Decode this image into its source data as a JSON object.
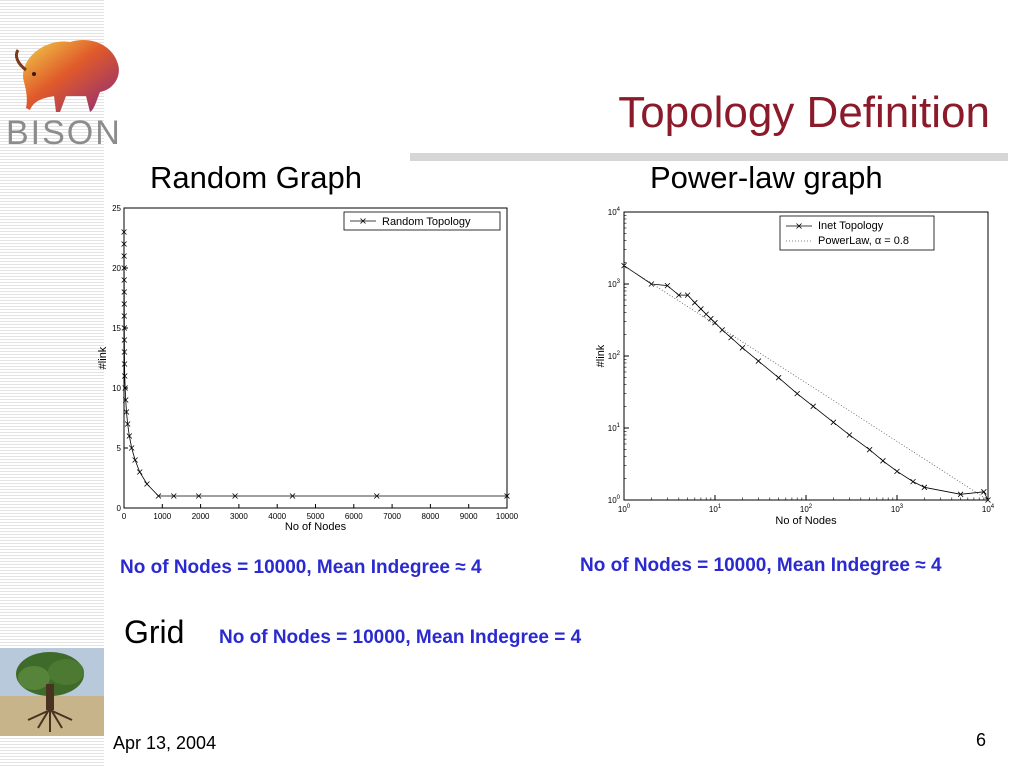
{
  "slide": {
    "title": "Topology Definition",
    "logo_text": "BISON",
    "left_subtitle": "Random Graph",
    "right_subtitle": "Power-law graph",
    "left_caption": "No of Nodes = 10000, Mean Indegree ≈ 4",
    "right_caption": "No of Nodes = 10000, Mean Indegree ≈ 4",
    "grid_label": "Grid",
    "grid_caption": "No of Nodes = 10000, Mean Indegree = 4",
    "date": "Apr 13, 2004",
    "page_number": "6"
  },
  "colors": {
    "title": "#8b1a2a",
    "caption": "#2a2ad0",
    "rule": "#d6d6d6"
  },
  "chart_data": [
    {
      "type": "line",
      "xlabel": "No of Nodes",
      "ylabel": "#link",
      "xlim": [
        0,
        10000
      ],
      "ylim": [
        0,
        25
      ],
      "xticks": [
        0,
        1000,
        2000,
        3000,
        4000,
        5000,
        6000,
        7000,
        8000,
        9000,
        10000
      ],
      "yticks": [
        0,
        5,
        10,
        15,
        20,
        25
      ],
      "grid": false,
      "legend": "top-right",
      "series": [
        {
          "name": "Random Topology",
          "marker": "x",
          "x": [
            1,
            2,
            3,
            4,
            5,
            6,
            7,
            8,
            9,
            10,
            12,
            14,
            20,
            30,
            45,
            65,
            95,
            140,
            200,
            290,
            410,
            600,
            900,
            1300,
            1950,
            2900,
            4400,
            6600,
            10000
          ],
          "y": [
            23,
            22,
            21,
            20,
            19,
            18,
            17,
            16,
            15,
            14,
            13,
            12,
            11,
            10,
            9,
            8,
            7,
            6,
            5,
            4,
            3,
            2,
            1,
            1,
            1,
            1,
            1,
            1,
            1
          ]
        }
      ]
    },
    {
      "type": "line",
      "xlabel": "No of Nodes",
      "ylabel": "#link",
      "xscale": "log",
      "yscale": "log",
      "xlim": [
        1,
        10000
      ],
      "ylim": [
        1,
        10000
      ],
      "xticks": [
        "10^0",
        "10^1",
        "10^2",
        "10^3",
        "10^4"
      ],
      "yticks": [
        "10^0",
        "10^1",
        "10^2",
        "10^3",
        "10^4"
      ],
      "grid": false,
      "legend": "top-right",
      "series": [
        {
          "name": "Inet Topology",
          "marker": "x",
          "x": [
            1,
            2,
            3,
            4,
            5,
            6,
            7,
            8,
            9,
            10,
            12,
            15,
            20,
            30,
            50,
            80,
            120,
            200,
            300,
            500,
            700,
            1000,
            1500,
            2000,
            5000,
            9000,
            10000
          ],
          "y": [
            1800,
            1000,
            950,
            700,
            700,
            550,
            450,
            380,
            330,
            290,
            230,
            180,
            130,
            85,
            50,
            30,
            20,
            12,
            8,
            5,
            3.5,
            2.5,
            1.8,
            1.5,
            1.2,
            1.3,
            1
          ]
        },
        {
          "name": "PowerLaw, α = 0.8",
          "line": "dotted",
          "x": [
            1,
            10000
          ],
          "y": [
            1800,
            1
          ]
        }
      ]
    }
  ]
}
